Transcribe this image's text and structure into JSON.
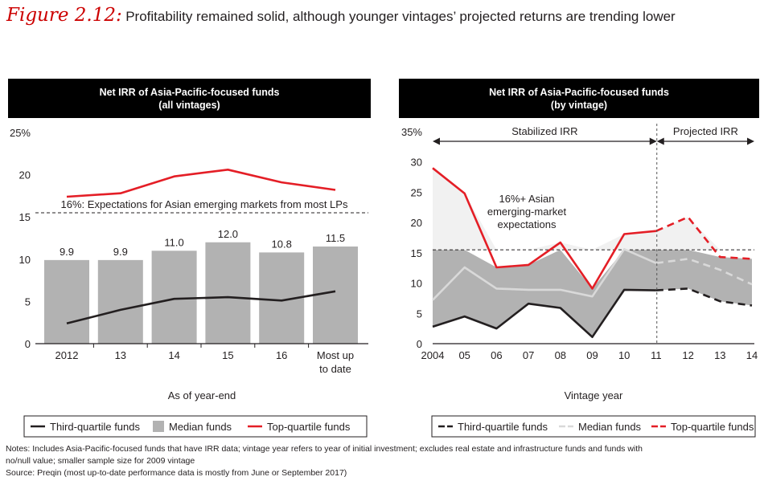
{
  "figure": {
    "label": "Figure 2.12:",
    "title": "Profitability remained solid, although younger vintages’ projected returns are trending lower"
  },
  "chart_data": [
    {
      "type": "bar",
      "header_line1": "Net IRR of Asia-Pacific-focused funds",
      "header_line2": "(all vintages)",
      "categories": [
        "2012",
        "13",
        "14",
        "15",
        "16",
        "Most up to date"
      ],
      "category_lines": [
        [
          "2012"
        ],
        [
          "13"
        ],
        [
          "14"
        ],
        [
          "15"
        ],
        [
          "16"
        ],
        [
          "Most up",
          "to date"
        ]
      ],
      "series": [
        {
          "name": "Median funds",
          "kind": "bar",
          "color": "#b2b2b2",
          "values": [
            9.9,
            9.9,
            11.0,
            12.0,
            10.8,
            11.5
          ]
        },
        {
          "name": "Top-quartile funds",
          "kind": "line",
          "color": "#e41e26",
          "values": [
            17.4,
            17.8,
            19.8,
            20.6,
            19.1,
            18.2
          ]
        },
        {
          "name": "Third-quartile funds",
          "kind": "line",
          "color": "#231f20",
          "values": [
            2.4,
            4.0,
            5.3,
            5.5,
            5.1,
            6.2
          ]
        }
      ],
      "bar_labels": [
        "9.9",
        "9.9",
        "11.0",
        "12.0",
        "10.8",
        "11.5"
      ],
      "ylim": [
        0,
        25
      ],
      "yticks": [
        0,
        5,
        10,
        15,
        20
      ],
      "ytick_top_label": "25%",
      "reference_line": {
        "value": 15.5,
        "label": "16%: Expectations for Asian emerging markets from most LPs"
      },
      "xlabel": "As of year-end",
      "legend": [
        {
          "name": "Third-quartile funds",
          "kind": "line",
          "color": "#231f20"
        },
        {
          "name": "Median funds",
          "kind": "box",
          "color": "#b2b2b2"
        },
        {
          "name": "Top-quartile funds",
          "kind": "line",
          "color": "#e41e26"
        }
      ]
    },
    {
      "type": "line",
      "header_line1": "Net IRR of Asia-Pacific-focused funds",
      "header_line2": "(by vintage)",
      "x": [
        "2004",
        "05",
        "06",
        "07",
        "08",
        "09",
        "10",
        "11",
        "12",
        "13",
        "14"
      ],
      "series": [
        {
          "name": "Third-quartile funds",
          "color": "#231f20",
          "values": [
            2.8,
            4.5,
            2.5,
            6.6,
            5.9,
            1.1,
            8.9,
            8.8,
            9.1,
            7.0,
            6.3
          ]
        },
        {
          "name": "Median funds",
          "color": "#d9d9d9",
          "values": [
            7.2,
            12.6,
            9.1,
            8.9,
            8.9,
            7.8,
            15.6,
            13.3,
            14.0,
            12.2,
            9.8
          ]
        },
        {
          "name": "Top-quartile funds",
          "color": "#e41e26",
          "values": [
            29.0,
            24.8,
            12.6,
            13.0,
            16.7,
            9.1,
            18.1,
            18.6,
            20.9,
            14.3,
            14.0
          ]
        }
      ],
      "projected_from_index": 7,
      "ylim": [
        0,
        35
      ],
      "yticks": [
        0,
        5,
        10,
        15,
        20,
        25,
        30
      ],
      "ytick_top_label": "35%",
      "reference_line": {
        "value": 15.5
      },
      "annotation_lines": [
        "16%+ Asian",
        "emerging-market",
        "expectations"
      ],
      "stabilized_label": "Stabilized IRR",
      "projected_label": "Projected IRR",
      "xlabel": "Vintage year",
      "legend": [
        {
          "name": "Third-quartile funds",
          "kind": "dash",
          "color": "#231f20"
        },
        {
          "name": "Median funds",
          "kind": "dash",
          "color": "#d9d9d9"
        },
        {
          "name": "Top-quartile funds",
          "kind": "dash",
          "color": "#e41e26"
        }
      ]
    }
  ],
  "notes": {
    "line1": "Notes: Includes Asia-Pacific-focused funds that have IRR data; vintage year refers to year of initial investment; excludes real estate and infrastructure funds and funds with",
    "line2": "no/null value; smaller sample size for 2009 vintage",
    "line3": "Source: Preqin (most up-to-date performance data is mostly from June or September 2017)"
  }
}
